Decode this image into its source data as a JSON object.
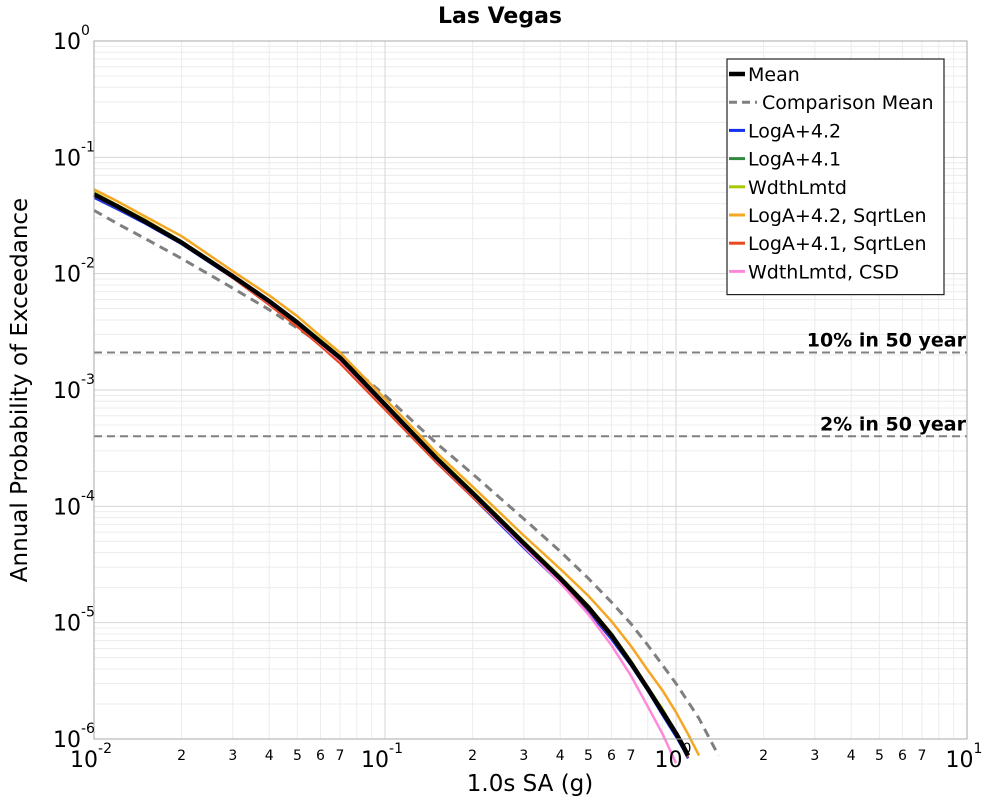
{
  "chart_data": {
    "type": "line",
    "title": "Las Vegas",
    "xlabel": "1.0s SA (g)",
    "ylabel": "Annual Probability of Exceedance",
    "xscale": "log",
    "yscale": "log",
    "xlim": [
      0.01,
      10
    ],
    "ylim": [
      1e-06,
      1
    ],
    "grid": true,
    "legend_position": "top-right",
    "x_ticks": {
      "major": [
        {
          "value": 0.01,
          "base": "10",
          "exp": "-2"
        },
        {
          "value": 0.1,
          "base": "10",
          "exp": "-1"
        },
        {
          "value": 1,
          "base": "10",
          "exp": "0"
        },
        {
          "value": 10,
          "base": "10",
          "exp": "1"
        }
      ],
      "minor_labels": [
        "2",
        "3",
        "4",
        "5",
        "6",
        "7"
      ]
    },
    "y_ticks": [
      {
        "value": 1,
        "base": "10",
        "exp": "0"
      },
      {
        "value": 0.1,
        "base": "10",
        "exp": "-1"
      },
      {
        "value": 0.01,
        "base": "10",
        "exp": "-2"
      },
      {
        "value": 0.001,
        "base": "10",
        "exp": "-3"
      },
      {
        "value": 0.0001,
        "base": "10",
        "exp": "-4"
      },
      {
        "value": 1e-05,
        "base": "10",
        "exp": "-5"
      },
      {
        "value": 1e-06,
        "base": "10",
        "exp": "-6"
      }
    ],
    "reference_lines": [
      {
        "label": "10% in 50 year",
        "y": 0.0021,
        "color": "#808080",
        "style": "dashed"
      },
      {
        "label": "2% in 50 year",
        "y": 0.0004,
        "color": "#808080",
        "style": "dashed"
      }
    ],
    "series": [
      {
        "name": "Mean",
        "color": "#000000",
        "style": "solid",
        "width": 4.5,
        "x": [
          0.01,
          0.012,
          0.015,
          0.02,
          0.03,
          0.04,
          0.05,
          0.06,
          0.07,
          0.1,
          0.15,
          0.2,
          0.3,
          0.4,
          0.5,
          0.6,
          0.7,
          0.8,
          0.9,
          1.0,
          1.05,
          1.1
        ],
        "y": [
          0.048,
          0.038,
          0.028,
          0.0185,
          0.0095,
          0.0058,
          0.0038,
          0.0026,
          0.0019,
          0.00075,
          0.00026,
          0.00013,
          4.8e-05,
          2.4e-05,
          1.35e-05,
          7.8e-06,
          4.5e-06,
          2.7e-06,
          1.7e-06,
          1.12e-06,
          9e-07,
          7.2e-07
        ]
      },
      {
        "name": "Comparison Mean",
        "color": "#808080",
        "style": "dashed",
        "width": 3,
        "x": [
          0.01,
          0.012,
          0.015,
          0.02,
          0.03,
          0.04,
          0.05,
          0.06,
          0.07,
          0.1,
          0.15,
          0.2,
          0.3,
          0.4,
          0.5,
          0.6,
          0.7,
          0.8,
          0.9,
          1.0,
          1.2,
          1.4
        ],
        "y": [
          0.035,
          0.027,
          0.02,
          0.0135,
          0.0075,
          0.0049,
          0.0034,
          0.0025,
          0.0019,
          0.0009,
          0.00035,
          0.00019,
          7.8e-05,
          4.1e-05,
          2.4e-05,
          1.5e-05,
          9.8e-06,
          6.4e-06,
          4.3e-06,
          3e-06,
          1.5e-06,
          7.2e-07
        ]
      },
      {
        "name": "LogA+4.2",
        "color": "#1132e8",
        "style": "solid",
        "width": 2.5,
        "x": [
          0.01,
          0.012,
          0.015,
          0.02,
          0.03,
          0.04,
          0.05,
          0.06,
          0.07,
          0.1,
          0.15,
          0.2,
          0.3,
          0.4,
          0.5,
          0.6,
          0.7,
          0.8,
          0.9,
          1.0,
          1.05,
          1.1
        ],
        "y": [
          0.045,
          0.036,
          0.027,
          0.018,
          0.0092,
          0.0056,
          0.0037,
          0.0025,
          0.0018,
          0.00072,
          0.00024,
          0.00012,
          4.4e-05,
          2.2e-05,
          1.25e-05,
          7.2e-06,
          4.3e-06,
          2.6e-06,
          1.6e-06,
          1.05e-06,
          8.5e-07,
          6.8e-07
        ]
      },
      {
        "name": "LogA+4.1",
        "color": "#2e8b3e",
        "style": "solid",
        "width": 2.5,
        "x": [
          0.01,
          0.012,
          0.015,
          0.02,
          0.03,
          0.04,
          0.05,
          0.06,
          0.07,
          0.1,
          0.15,
          0.2,
          0.3,
          0.4,
          0.5,
          0.6,
          0.7,
          0.8,
          0.9,
          1.0,
          1.05,
          1.1
        ],
        "y": [
          0.047,
          0.037,
          0.0278,
          0.0183,
          0.0094,
          0.0057,
          0.0037,
          0.0025,
          0.00185,
          0.00074,
          0.00025,
          0.000125,
          4.6e-05,
          2.3e-05,
          1.3e-05,
          7.5e-06,
          4.4e-06,
          2.7e-06,
          1.7e-06,
          1.1e-06,
          8.8e-07,
          7e-07
        ]
      },
      {
        "name": "WdthLmtd",
        "color": "#a8c800",
        "style": "solid",
        "width": 2.5,
        "x": [
          0.01,
          0.012,
          0.015,
          0.02,
          0.03,
          0.04,
          0.05,
          0.06,
          0.07,
          0.1,
          0.15,
          0.2,
          0.3,
          0.4,
          0.5,
          0.6,
          0.7,
          0.8,
          0.9,
          1.0,
          1.05,
          1.1
        ],
        "y": [
          0.05,
          0.039,
          0.029,
          0.019,
          0.0097,
          0.0059,
          0.0039,
          0.0027,
          0.00195,
          0.00077,
          0.00027,
          0.000135,
          5e-05,
          2.5e-05,
          1.4e-05,
          8.1e-06,
          4.7e-06,
          2.8e-06,
          1.8e-06,
          1.15e-06,
          9.3e-07,
          7.5e-07
        ]
      },
      {
        "name": "LogA+4.2, SqrtLen",
        "color": "#f5a623",
        "style": "solid",
        "width": 2.5,
        "x": [
          0.01,
          0.012,
          0.015,
          0.02,
          0.03,
          0.04,
          0.05,
          0.06,
          0.07,
          0.1,
          0.15,
          0.2,
          0.3,
          0.4,
          0.5,
          0.6,
          0.7,
          0.8,
          0.9,
          1.0,
          1.1,
          1.2
        ],
        "y": [
          0.053,
          0.042,
          0.031,
          0.021,
          0.0105,
          0.0065,
          0.0043,
          0.0029,
          0.0021,
          0.00084,
          0.00029,
          0.000148,
          5.6e-05,
          2.9e-05,
          1.7e-05,
          1.03e-05,
          6.3e-06,
          3.9e-06,
          2.6e-06,
          1.7e-06,
          1.1e-06,
          7.2e-07
        ]
      },
      {
        "name": "LogA+4.1, SqrtLen",
        "color": "#e84a1e",
        "style": "solid",
        "width": 2.5,
        "x": [
          0.01,
          0.012,
          0.015,
          0.02,
          0.03,
          0.04,
          0.05,
          0.06,
          0.07,
          0.1,
          0.15,
          0.2,
          0.3,
          0.4,
          0.5,
          0.6,
          0.7,
          0.8,
          0.9,
          1.0,
          1.05,
          1.1
        ],
        "y": [
          0.048,
          0.038,
          0.0282,
          0.0185,
          0.0092,
          0.0054,
          0.0035,
          0.0024,
          0.0017,
          0.00068,
          0.00024,
          0.00012,
          4.6e-05,
          2.3e-05,
          1.3e-05,
          7.5e-06,
          4.4e-06,
          2.7e-06,
          1.7e-06,
          1.1e-06,
          8.8e-07,
          7e-07
        ]
      },
      {
        "name": "WdthLmtd, CSD",
        "color": "#ff88dd",
        "style": "solid",
        "width": 2.5,
        "x": [
          0.01,
          0.012,
          0.015,
          0.02,
          0.03,
          0.04,
          0.05,
          0.06,
          0.07,
          0.1,
          0.15,
          0.2,
          0.3,
          0.4,
          0.5,
          0.6,
          0.7,
          0.8,
          0.9,
          0.95,
          1.0
        ],
        "y": [
          0.047,
          0.037,
          0.0278,
          0.0183,
          0.0093,
          0.0056,
          0.0037,
          0.0025,
          0.0018,
          0.00072,
          0.00025,
          0.000125,
          4.5e-05,
          2.2e-05,
          1.18e-05,
          6.4e-06,
          3.5e-06,
          1.9e-06,
          1.1e-06,
          8.2e-07,
          6.2e-07
        ]
      }
    ]
  }
}
